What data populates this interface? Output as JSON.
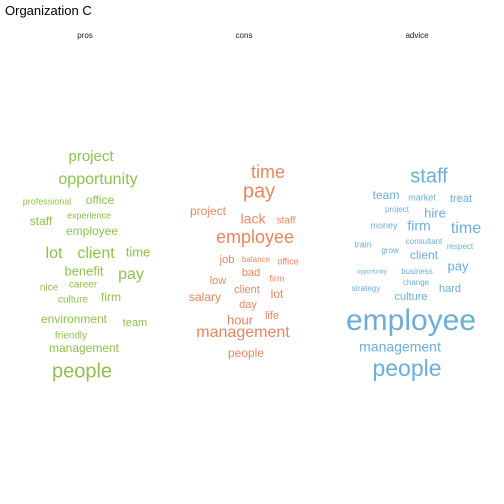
{
  "title": "Organization C",
  "chart_data": {
    "type": "wordcloud",
    "facets": [
      {
        "label": "pros",
        "color": "#8dc24b",
        "words": [
          {
            "text": "project",
            "weight": 15
          },
          {
            "text": "opportunity",
            "weight": 16
          },
          {
            "text": "professional",
            "weight": 9
          },
          {
            "text": "office",
            "weight": 12
          },
          {
            "text": "experience",
            "weight": 9
          },
          {
            "text": "staff",
            "weight": 12
          },
          {
            "text": "employee",
            "weight": 12
          },
          {
            "text": "lot",
            "weight": 16
          },
          {
            "text": "client",
            "weight": 16
          },
          {
            "text": "time",
            "weight": 13
          },
          {
            "text": "benefit",
            "weight": 13
          },
          {
            "text": "pay",
            "weight": 16
          },
          {
            "text": "nice",
            "weight": 10
          },
          {
            "text": "career",
            "weight": 10
          },
          {
            "text": "culture",
            "weight": 10
          },
          {
            "text": "firm",
            "weight": 12
          },
          {
            "text": "environment",
            "weight": 12
          },
          {
            "text": "team",
            "weight": 11
          },
          {
            "text": "friendly",
            "weight": 10
          },
          {
            "text": "management",
            "weight": 12
          },
          {
            "text": "people",
            "weight": 20
          }
        ]
      },
      {
        "label": "cons",
        "color": "#e8865e",
        "words": [
          {
            "text": "time",
            "weight": 18
          },
          {
            "text": "pay",
            "weight": 20
          },
          {
            "text": "project",
            "weight": 12
          },
          {
            "text": "lack",
            "weight": 14
          },
          {
            "text": "staff",
            "weight": 10
          },
          {
            "text": "employee",
            "weight": 18
          },
          {
            "text": "job",
            "weight": 11
          },
          {
            "text": "balance",
            "weight": 8
          },
          {
            "text": "office",
            "weight": 9
          },
          {
            "text": "low",
            "weight": 11
          },
          {
            "text": "bad",
            "weight": 11
          },
          {
            "text": "firm",
            "weight": 9
          },
          {
            "text": "client",
            "weight": 11
          },
          {
            "text": "lot",
            "weight": 12
          },
          {
            "text": "salary",
            "weight": 12
          },
          {
            "text": "day",
            "weight": 11
          },
          {
            "text": "hour",
            "weight": 13
          },
          {
            "text": "life",
            "weight": 11
          },
          {
            "text": "management",
            "weight": 16
          },
          {
            "text": "people",
            "weight": 12
          }
        ]
      },
      {
        "label": "advice",
        "color": "#6baed6",
        "words": [
          {
            "text": "staff",
            "weight": 20
          },
          {
            "text": "team",
            "weight": 12
          },
          {
            "text": "market",
            "weight": 9
          },
          {
            "text": "treat",
            "weight": 11
          },
          {
            "text": "project",
            "weight": 8
          },
          {
            "text": "hire",
            "weight": 13
          },
          {
            "text": "money",
            "weight": 9
          },
          {
            "text": "firm",
            "weight": 14
          },
          {
            "text": "time",
            "weight": 16
          },
          {
            "text": "train",
            "weight": 9
          },
          {
            "text": "grow",
            "weight": 8
          },
          {
            "text": "consultant",
            "weight": 8
          },
          {
            "text": "client",
            "weight": 12
          },
          {
            "text": "respect",
            "weight": 8
          },
          {
            "text": "opportunity",
            "weight": 6
          },
          {
            "text": "business",
            "weight": 8
          },
          {
            "text": "pay",
            "weight": 13
          },
          {
            "text": "change",
            "weight": 8
          },
          {
            "text": "strategy",
            "weight": 8
          },
          {
            "text": "culture",
            "weight": 11
          },
          {
            "text": "hard",
            "weight": 11
          },
          {
            "text": "employee",
            "weight": 30
          },
          {
            "text": "management",
            "weight": 14
          },
          {
            "text": "people",
            "weight": 23
          }
        ]
      }
    ]
  }
}
